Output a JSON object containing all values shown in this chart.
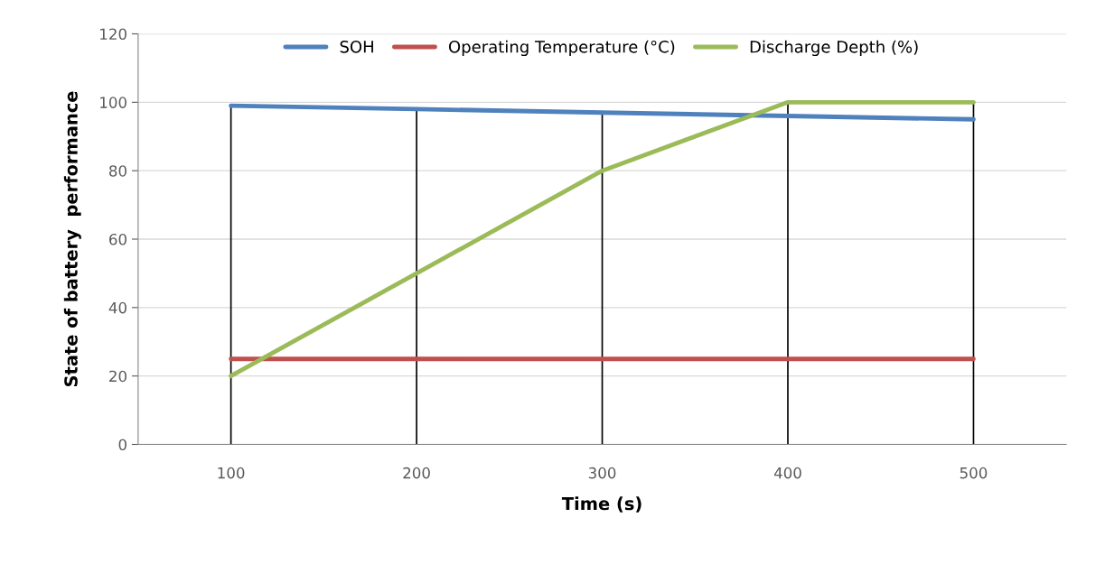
{
  "chart_data": {
    "type": "line",
    "xlabel": "Time (s)",
    "ylabel": "State of battery  performance",
    "categories": [
      "100",
      "200",
      "300",
      "400",
      "500"
    ],
    "series": [
      {
        "name": "SOH",
        "color": "#4f81bd",
        "values": [
          99,
          98,
          97,
          96,
          95
        ]
      },
      {
        "name": "Operating Temperature (°C)",
        "color": "#c0504d",
        "values": [
          25,
          25,
          25,
          25,
          25
        ]
      },
      {
        "name": "Discharge Depth (%)",
        "color": "#9bbb59",
        "values": [
          20,
          50,
          80,
          100,
          100
        ]
      }
    ],
    "ref_lines": [
      {
        "axis": "x",
        "value": "100",
        "color": "#000000"
      },
      {
        "axis": "x",
        "value": "200",
        "color": "#000000"
      },
      {
        "axis": "x",
        "value": "300",
        "color": "#000000"
      },
      {
        "axis": "x",
        "value": "400",
        "color": "#000000"
      },
      {
        "axis": "x",
        "value": "500",
        "color": "#000000"
      }
    ],
    "ylim": [
      0,
      120
    ],
    "yticks": [
      0,
      20,
      40,
      60,
      80,
      100,
      120
    ],
    "grid": "y",
    "legend": "top",
    "marker": "none",
    "line_style": "solid"
  }
}
